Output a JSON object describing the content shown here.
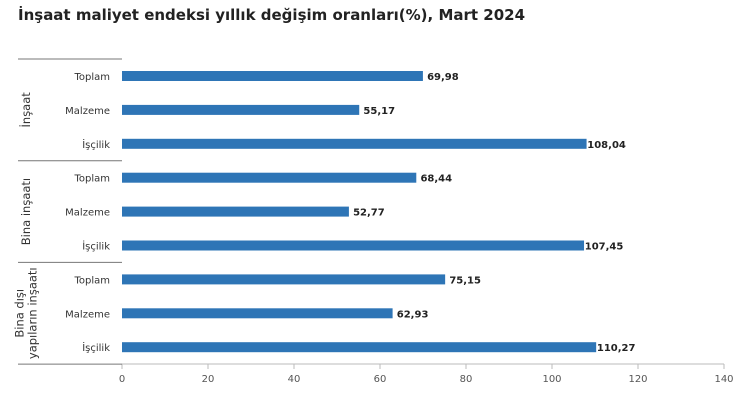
{
  "chart_data": {
    "type": "bar",
    "orientation": "horizontal",
    "title": "İnşaat maliyet endeksi yıllık değişim oranları(%), Mart 2024",
    "color": "#2e75b6",
    "xlim": [
      0,
      140
    ],
    "xticks": [
      "0",
      "20",
      "40",
      "60",
      "80",
      "100",
      "120",
      "140"
    ],
    "grid": false,
    "legend": "none",
    "groups": [
      {
        "label_lines": [
          "İnşaat"
        ],
        "categories": [
          "Toplam",
          "Malzeme",
          "İşçilik"
        ],
        "values": [
          69.98,
          55.17,
          108.04
        ],
        "value_labels": [
          "69,98",
          "55,17",
          "108,04"
        ]
      },
      {
        "label_lines": [
          "Bina inşaatı"
        ],
        "categories": [
          "Toplam",
          "Malzeme",
          "İşçilik"
        ],
        "values": [
          68.44,
          52.77,
          107.45
        ],
        "value_labels": [
          "68,44",
          "52,77",
          "107,45"
        ]
      },
      {
        "label_lines": [
          "Bina dışı",
          "yapıların inşaatı"
        ],
        "categories": [
          "Toplam",
          "Malzeme",
          "İşçilik"
        ],
        "values": [
          75.15,
          62.93,
          110.27
        ],
        "value_labels": [
          "75,15",
          "62,93",
          "110,27"
        ]
      }
    ]
  }
}
